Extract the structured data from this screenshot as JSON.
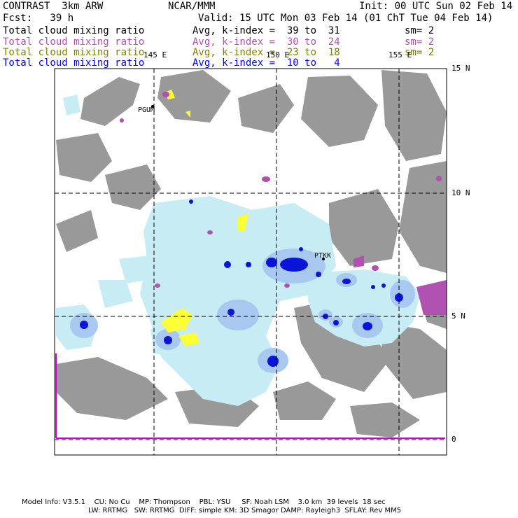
{
  "header": {
    "product": "CONTRAST  3km ARW",
    "center": "NCAR/MMM",
    "init": "Init: 00 UTC Sun 02 Feb 14",
    "fcst": "Fcst:   39 h",
    "valid": "Valid: 15 UTC Mon 03 Feb 14 (01 ChT Tue 04 Feb 14)"
  },
  "fields": [
    {
      "name": "Total cloud mixing ratio",
      "avg": "Avg, k-index =  39 to  31",
      "sm": "sm= 2",
      "color": "#000000"
    },
    {
      "name": "Total cloud mixing ratio",
      "avg": "Avg, k-index =  30 to  24",
      "sm": "sm= 2",
      "color": "#b050b0"
    },
    {
      "name": "Total cloud mixing ratio",
      "avg": "Avg, k-index =  23 to  18",
      "sm": "sm= 2",
      "color": "#808000"
    },
    {
      "name": "Total cloud mixing ratio",
      "avg": "Avg, k-index =  10 to   4",
      "sm": "",
      "color": "#0000ff"
    }
  ],
  "map": {
    "lon_labels": [
      "145 E",
      "150 E",
      "155 E"
    ],
    "lat_labels": [
      "15 N",
      "10 N",
      "5 N",
      "0"
    ],
    "stations": [
      "PGUM",
      "PTKK"
    ],
    "colors": {
      "land": "#999999",
      "cloud_light": "#c8ecf4",
      "cloud_mid": "#a8c8f0",
      "cloud_deep": "#0a14d8",
      "yellow": "#ffff33",
      "purple": "#b050b0",
      "equator": "#cc00cc"
    }
  },
  "footer": {
    "line1": "Model Info: V3.5.1    CU: No Cu    MP: Thompson    PBL: YSU     SF: Noah LSM    3.0 km  39 levels  18 sec",
    "line2": "LW: RRTMG   SW: RRTMG  DIFF: simple KM: 3D Smagor DAMP: Rayleigh3  SFLAY: Rev MM5"
  }
}
